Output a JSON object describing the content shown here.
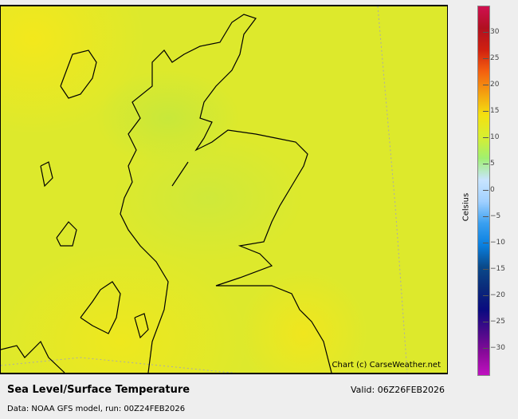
{
  "map": {
    "title": "Sea Level/Surface Temperature",
    "valid": "Valid: 06Z26FEB2026",
    "source": "Data: NOAA GFS model, run: 00Z24FEB2026",
    "credit": "Chart (c) CarseWeather.net",
    "region": "Scotland"
  },
  "colorbar": {
    "unit": "Celsius",
    "range": [
      -35,
      35
    ],
    "ticks": [
      30,
      25,
      20,
      15,
      10,
      5,
      0,
      -5,
      -10,
      -15,
      -20,
      -25,
      -30
    ],
    "tick_labels": [
      "30",
      "25",
      "20",
      "15",
      "10",
      "5",
      "0",
      "−5",
      "−10",
      "−15",
      "−20",
      "−25",
      "−30"
    ],
    "colors": [
      "#c010c0",
      "#8a0a9a",
      "#4a0a8a",
      "#0a0a80",
      "#0a2a7a",
      "#0a4a8a",
      "#0a80e0",
      "#3aa0f0",
      "#a0d0ff",
      "#c8e4ff",
      "#a0f070",
      "#d8ee30",
      "#f4e010",
      "#f4a010",
      "#f46010",
      "#d02010",
      "#b01020",
      "#d01050"
    ]
  }
}
